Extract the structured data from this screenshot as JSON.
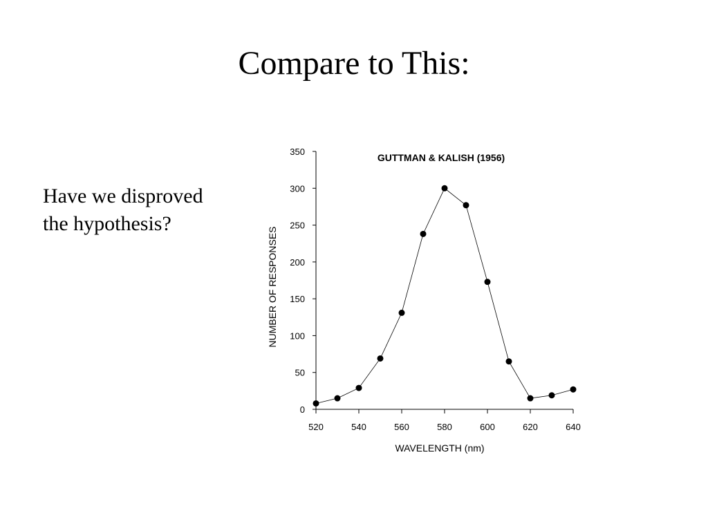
{
  "slide": {
    "title": "Compare to This:",
    "body_lines": [
      "Have we disproved",
      "the hypothesis?"
    ]
  },
  "chart_data": {
    "type": "line",
    "title": "GUTTMAN & KALISH (1956)",
    "xlabel": "WAVELENGTH (nm)",
    "ylabel": "NUMBER OF RESPONSES",
    "xlim": [
      520,
      640
    ],
    "ylim": [
      0,
      350
    ],
    "x_ticks": [
      520,
      540,
      560,
      580,
      600,
      620,
      640
    ],
    "y_ticks": [
      0,
      50,
      100,
      150,
      200,
      250,
      300,
      350
    ],
    "grid": false,
    "marker": "filled-circle",
    "series": [
      {
        "x": [
          520,
          530,
          540,
          550,
          560,
          570,
          580,
          590,
          600,
          610,
          620,
          630,
          640
        ],
        "values": [
          8,
          15,
          29,
          69,
          131,
          238,
          300,
          277,
          173,
          65,
          15,
          19,
          27
        ]
      }
    ]
  }
}
